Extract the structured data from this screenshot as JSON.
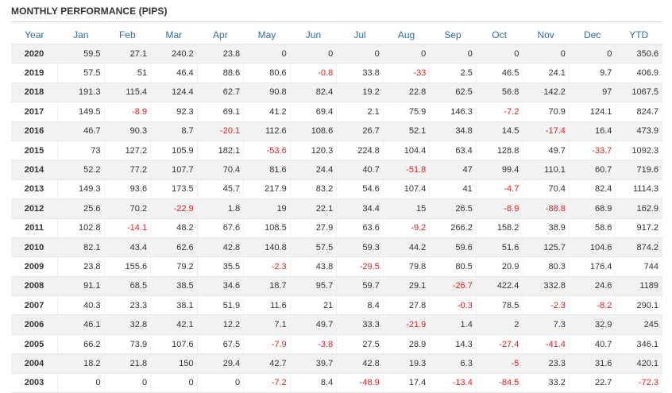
{
  "title": "MONTHLY PERFORMANCE (PIPS)",
  "columns": [
    "Year",
    "Jan",
    "Feb",
    "Mar",
    "Apr",
    "May",
    "Jun",
    "Jul",
    "Aug",
    "Sep",
    "Oct",
    "Nov",
    "Dec",
    "YTD"
  ],
  "rows": [
    [
      "2020",
      "59.5",
      "27.1",
      "240.2",
      "23.8",
      "0",
      "0",
      "0",
      "0",
      "0",
      "0",
      "0",
      "0",
      "350.6"
    ],
    [
      "2019",
      "57.5",
      "51",
      "46.4",
      "88.6",
      "80.6",
      "-0.8",
      "33.8",
      "-33",
      "2.5",
      "46.5",
      "24.1",
      "9.7",
      "406.9"
    ],
    [
      "2018",
      "191.3",
      "115.4",
      "124.4",
      "62.7",
      "90.8",
      "82.4",
      "19.2",
      "22.8",
      "62.5",
      "56.8",
      "142.2",
      "97",
      "1067.5"
    ],
    [
      "2017",
      "149.5",
      "-8.9",
      "92.3",
      "69.1",
      "41.2",
      "69.4",
      "2.1",
      "75.9",
      "146.3",
      "-7.2",
      "70.9",
      "124.1",
      "824.7"
    ],
    [
      "2016",
      "46.7",
      "90.3",
      "8.7",
      "-20.1",
      "112.6",
      "108.6",
      "26.7",
      "52.1",
      "34.8",
      "14.5",
      "-17.4",
      "16.4",
      "473.9"
    ],
    [
      "2015",
      "73",
      "127.2",
      "105.9",
      "182.1",
      "-53.6",
      "120.3",
      "224.8",
      "104.4",
      "63.4",
      "128.8",
      "49.7",
      "-33.7",
      "1092.3"
    ],
    [
      "2014",
      "52.2",
      "77.2",
      "107.7",
      "70.4",
      "81.6",
      "24.4",
      "40.7",
      "-51.8",
      "47",
      "99.4",
      "110.1",
      "60.7",
      "719.6"
    ],
    [
      "2013",
      "149.3",
      "93.6",
      "173.5",
      "45.7",
      "217.9",
      "83.2",
      "54.6",
      "107.4",
      "41",
      "-4.7",
      "70.4",
      "82.4",
      "1114.3"
    ],
    [
      "2012",
      "25.6",
      "70.2",
      "-22.9",
      "1.8",
      "19",
      "22.1",
      "34.4",
      "15",
      "26.5",
      "-8.9",
      "-88.8",
      "68.9",
      "162.9"
    ],
    [
      "2011",
      "102.8",
      "-14.1",
      "48.2",
      "67.6",
      "108.5",
      "27.9",
      "63.6",
      "-9.2",
      "266.2",
      "158.2",
      "38.9",
      "58.6",
      "917.2"
    ],
    [
      "2010",
      "82.1",
      "43.4",
      "62.6",
      "42.8",
      "140.8",
      "57.5",
      "59.3",
      "44.2",
      "59.6",
      "51.6",
      "125.7",
      "104.6",
      "874.2"
    ],
    [
      "2009",
      "23.8",
      "155.6",
      "79.2",
      "35.5",
      "-2.3",
      "43.8",
      "-29.5",
      "79.8",
      "80.5",
      "20.9",
      "80.3",
      "176.4",
      "744"
    ],
    [
      "2008",
      "91.1",
      "68.5",
      "38.5",
      "34.6",
      "18.7",
      "95.7",
      "59.7",
      "29.1",
      "-26.7",
      "422.4",
      "332.8",
      "24.6",
      "1189"
    ],
    [
      "2007",
      "40.3",
      "23.3",
      "38.1",
      "51.9",
      "11.6",
      "21",
      "8.4",
      "27.8",
      "-0.3",
      "78.5",
      "-2.3",
      "-8.2",
      "290.1"
    ],
    [
      "2006",
      "46.1",
      "32.8",
      "42.1",
      "12.2",
      "7.1",
      "49.7",
      "33.3",
      "-21.9",
      "1.4",
      "2",
      "7.3",
      "32.9",
      "245"
    ],
    [
      "2005",
      "66.2",
      "73.9",
      "107.6",
      "67.5",
      "-7.9",
      "-3.8",
      "27.5",
      "28.9",
      "14.3",
      "-27.4",
      "-41.4",
      "40.7",
      "346.1"
    ],
    [
      "2004",
      "18.2",
      "21.8",
      "150",
      "29.4",
      "42.7",
      "39.7",
      "42.8",
      "19.3",
      "6.3",
      "-5",
      "23.3",
      "31.6",
      "420.1"
    ],
    [
      "2003",
      "0",
      "0",
      "0",
      "0",
      "-7.2",
      "8.4",
      "-48.9",
      "17.4",
      "-13.4",
      "-84.5",
      "33.2",
      "22.7",
      "-72.3"
    ]
  ],
  "colors": {
    "header": "#2d6da3",
    "negative": "#e02020",
    "stripe": "#f2f2f2"
  }
}
